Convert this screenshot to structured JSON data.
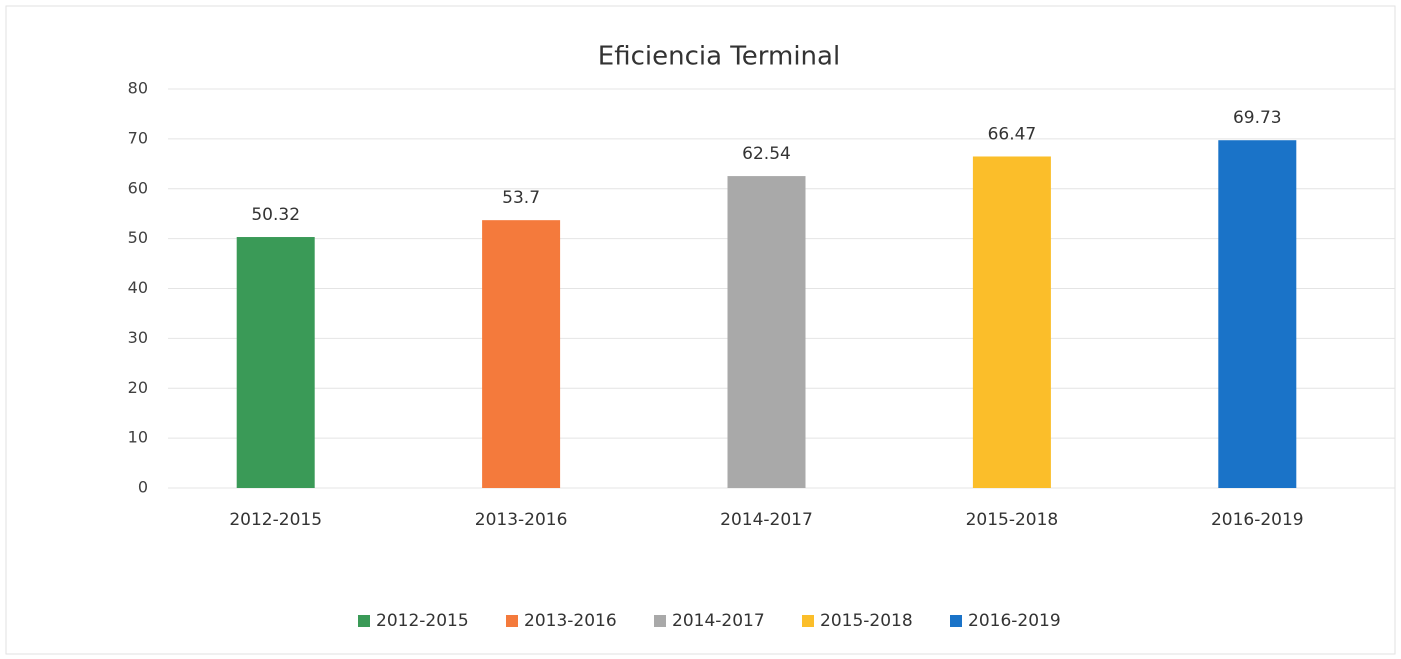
{
  "chart_data": {
    "type": "bar",
    "title": "Eficiencia Terminal",
    "categories": [
      "2012-2015",
      "2013-2016",
      "2014-2017",
      "2015-2018",
      "2016-2019"
    ],
    "values": [
      50.32,
      53.7,
      62.54,
      66.47,
      69.73
    ],
    "colors": [
      "#3a9a57",
      "#f47a3c",
      "#a9a9a9",
      "#fbbe2a",
      "#1a73c8"
    ],
    "ylim": [
      0,
      80
    ],
    "yticks": [
      0,
      10,
      20,
      30,
      40,
      50,
      60,
      70,
      80
    ],
    "grid": true,
    "legend": "bottom"
  }
}
